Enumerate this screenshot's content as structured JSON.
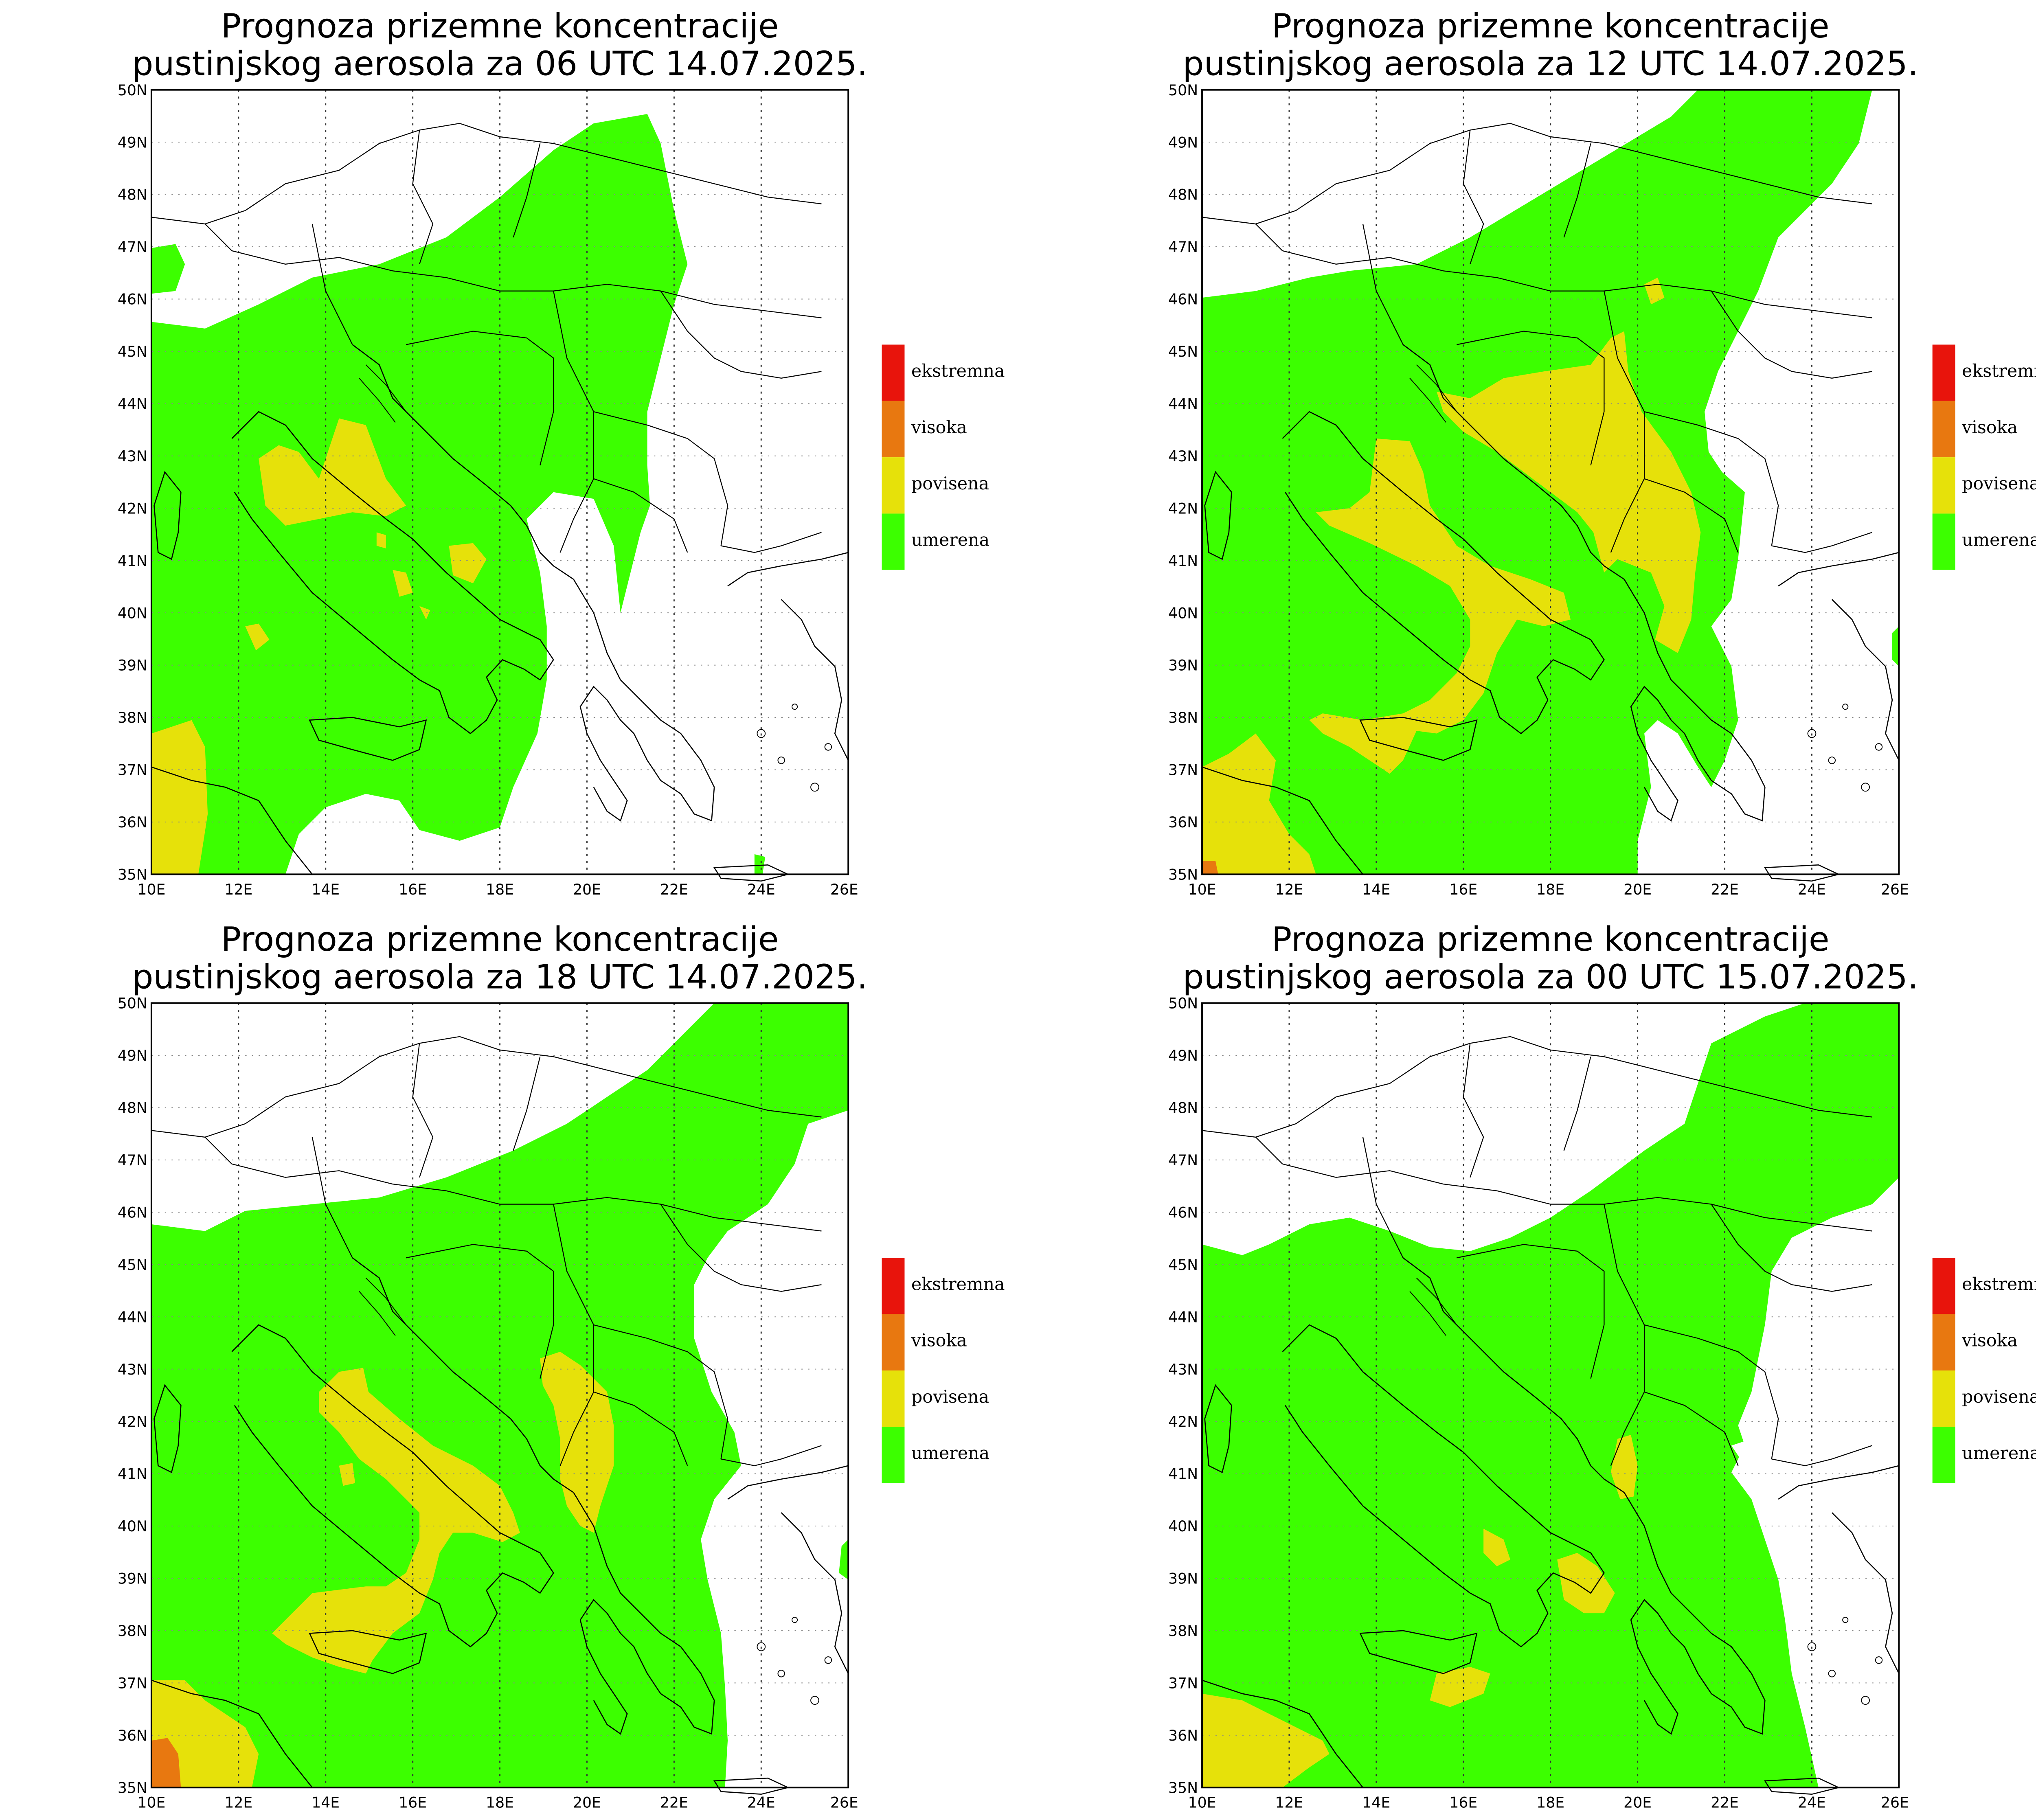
{
  "panels": [
    {
      "title_line1": "Prognoza prizemne koncentracije",
      "title_line2": "pustinjskog aerosola za 06 UTC 14.07.2025."
    },
    {
      "title_line1": "Prognoza prizemne koncentracije",
      "title_line2": "pustinjskog aerosola za 12 UTC 14.07.2025."
    },
    {
      "title_line1": "Prognoza prizemne koncentracije",
      "title_line2": "pustinjskog aerosola za 18 UTC 14.07.2025."
    },
    {
      "title_line1": "Prognoza prizemne koncentracije",
      "title_line2": "pustinjskog aerosola za 00 UTC 15.07.2025."
    }
  ],
  "lat_labels": [
    "50N",
    "49N",
    "48N",
    "47N",
    "46N",
    "45N",
    "44N",
    "43N",
    "42N",
    "41N",
    "40N",
    "39N",
    "38N",
    "37N",
    "36N",
    "35N"
  ],
  "lon_labels": [
    "10E",
    "12E",
    "14E",
    "16E",
    "18E",
    "20E",
    "22E",
    "24E",
    "26E"
  ],
  "legend": [
    {
      "label": "ekstremna",
      "color": "#e8140c"
    },
    {
      "label": "visoka",
      "color": "#e87810"
    },
    {
      "label": "povisena",
      "color": "#e6e10a"
    },
    {
      "label": "umerena",
      "color": "#3cff00"
    }
  ],
  "colors": {
    "umerena": "#3cff00",
    "povisena": "#e6e10a",
    "visoka": "#e87810",
    "ekstremna": "#e8140c"
  }
}
